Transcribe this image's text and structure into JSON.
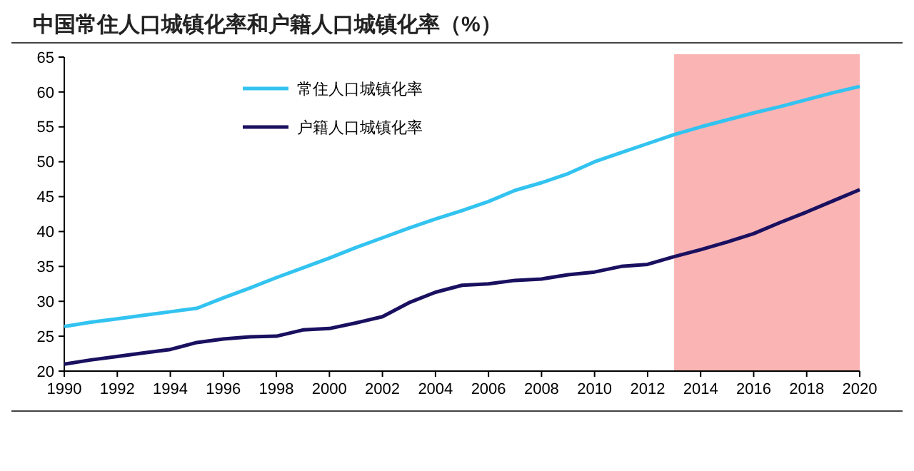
{
  "chart_data": {
    "type": "line",
    "title": "中国常住人口城镇化率和户籍人口城镇化率（%）",
    "x": [
      1990,
      1991,
      1992,
      1993,
      1994,
      1995,
      1996,
      1997,
      1998,
      1999,
      2000,
      2001,
      2002,
      2003,
      2004,
      2005,
      2006,
      2007,
      2008,
      2009,
      2010,
      2011,
      2012,
      2013,
      2014,
      2015,
      2016,
      2017,
      2018,
      2019,
      2020
    ],
    "series": [
      {
        "name": "常住人口城镇化率",
        "color": "#33c3f0",
        "values": [
          26.4,
          27,
          27.5,
          28,
          28.5,
          29,
          30.5,
          31.9,
          33.4,
          34.8,
          36.2,
          37.7,
          39.1,
          40.5,
          41.8,
          43,
          44.3,
          45.9,
          47,
          48.3,
          50,
          51.3,
          52.6,
          53.9,
          55,
          56,
          57,
          57.9,
          58.9,
          59.9,
          60.8
        ]
      },
      {
        "name": "户籍人口城镇化率",
        "color": "#1a1060",
        "values": [
          21,
          21.6,
          22.1,
          22.6,
          23.1,
          24.1,
          24.6,
          24.9,
          25,
          25.9,
          26.1,
          26.9,
          27.8,
          29.8,
          31.3,
          32.3,
          32.5,
          33,
          33.2,
          33.8,
          34.2,
          35,
          35.3,
          36.4,
          37.4,
          38.5,
          39.7,
          41.3,
          42.8,
          44.4,
          46
        ]
      }
    ],
    "xlim": [
      1990,
      2020
    ],
    "xticks": [
      1990,
      1992,
      1994,
      1996,
      1998,
      2000,
      2002,
      2004,
      2006,
      2008,
      2010,
      2012,
      2014,
      2016,
      2018,
      2020
    ],
    "ylim": [
      20,
      65
    ],
    "yticks": [
      20,
      25,
      30,
      35,
      40,
      45,
      50,
      55,
      60,
      65
    ],
    "bands": [
      {
        "axis": "x",
        "from": 2013,
        "to": 2020,
        "color": "#fbb4b4"
      }
    ],
    "legend": "top left",
    "grid": false
  }
}
